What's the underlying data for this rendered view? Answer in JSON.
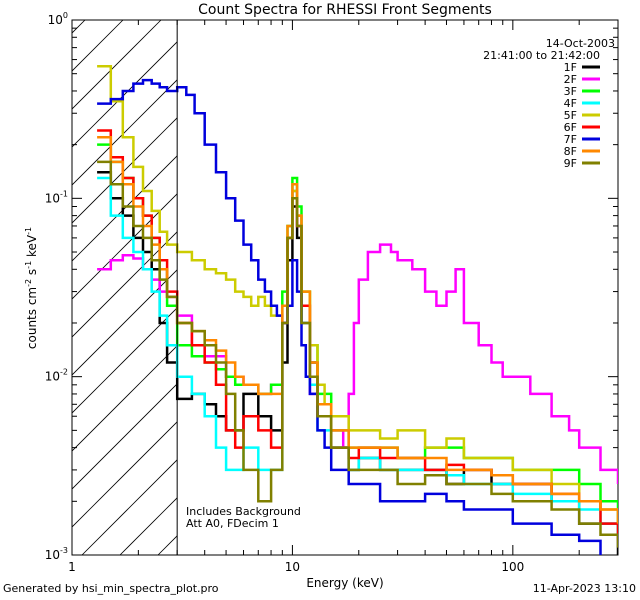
{
  "chart_data": {
    "type": "line",
    "title": "Count Spectra for RHESSI Front Segments",
    "xlabel": "Energy (keV)",
    "ylabel_main": "counts cm",
    "ylabel_exp1": "-2",
    "ylabel_mid": " s",
    "ylabel_exp2": "-1",
    "ylabel_end": " keV",
    "ylabel_exp3": "-1",
    "xscale": "log",
    "yscale": "log",
    "xlim": [
      1,
      300
    ],
    "ylim": [
      0.001,
      1
    ],
    "x_ticks": [
      {
        "value": 1,
        "label": "1"
      },
      {
        "value": 10,
        "label": "10"
      },
      {
        "value": 100,
        "label": "100"
      }
    ],
    "y_ticks": [
      {
        "value": 1,
        "base": "10",
        "exp": "0"
      },
      {
        "value": 0.1,
        "base": "10",
        "exp": "-1"
      },
      {
        "value": 0.01,
        "base": "10",
        "exp": "-2"
      },
      {
        "value": 0.001,
        "base": "10",
        "exp": "-3"
      }
    ],
    "date": "14-Oct-2003",
    "time_range": "21:41:00 to 21:42:00",
    "hatch_region_keV": [
      1,
      3
    ],
    "annotations": [
      "Includes Background",
      "Att A0, FDecim 1"
    ],
    "series": [
      {
        "name": "1F",
        "color": "#000000",
        "x": [
          1.3,
          1.5,
          1.7,
          1.9,
          2.1,
          2.3,
          2.5,
          2.7,
          3.0,
          3.5,
          4.0,
          4.5,
          5.0,
          5.5,
          6.0,
          7.0,
          8.0,
          9.0,
          9.5,
          10.0,
          10.5,
          11.0,
          12.0,
          13.0,
          15.0,
          18.0,
          20.0,
          25.0,
          30.0,
          40.0,
          50.0,
          60.0,
          80.0,
          100.0,
          150.0,
          200.0,
          250.0,
          300.0
        ],
        "y": [
          0.14,
          0.1,
          0.08,
          0.06,
          0.05,
          0.04,
          0.02,
          0.012,
          0.0075,
          0.008,
          0.007,
          0.006,
          0.005,
          0.005,
          0.008,
          0.006,
          0.005,
          0.012,
          0.045,
          0.09,
          0.06,
          0.02,
          0.012,
          0.006,
          0.004,
          0.003,
          0.0035,
          0.003,
          0.003,
          0.003,
          0.0025,
          0.003,
          0.0025,
          0.0025,
          0.002,
          0.0015,
          0.0015,
          0.001
        ]
      },
      {
        "name": "2F",
        "color": "#ff00ff",
        "x": [
          1.3,
          1.5,
          1.7,
          1.9,
          2.1,
          2.3,
          2.5,
          2.7,
          3.0,
          3.5,
          4.0,
          5.0,
          6.0,
          7.0,
          8.0,
          9.0,
          9.5,
          10.0,
          10.5,
          11.0,
          12.0,
          13.0,
          15.0,
          17.0,
          18.0,
          19.0,
          20.0,
          22.0,
          25.0,
          28.0,
          30.0,
          35.0,
          40.0,
          45.0,
          50.0,
          55.0,
          60.0,
          70.0,
          80.0,
          90.0,
          100.0,
          120.0,
          150.0,
          180.0,
          200.0,
          250.0,
          300.0
        ],
        "y": [
          0.04,
          0.045,
          0.048,
          0.046,
          0.04,
          0.035,
          0.03,
          0.028,
          0.022,
          0.015,
          0.013,
          0.01,
          0.009,
          0.008,
          0.009,
          0.02,
          0.06,
          0.11,
          0.07,
          0.02,
          0.008,
          0.006,
          0.005,
          0.004,
          0.008,
          0.02,
          0.035,
          0.05,
          0.055,
          0.05,
          0.045,
          0.04,
          0.03,
          0.025,
          0.03,
          0.04,
          0.02,
          0.015,
          0.012,
          0.01,
          0.01,
          0.008,
          0.006,
          0.005,
          0.004,
          0.003,
          0.0025
        ]
      },
      {
        "name": "3F",
        "color": "#00ff00",
        "x": [
          1.3,
          1.5,
          1.7,
          1.9,
          2.1,
          2.3,
          2.5,
          2.7,
          3.0,
          3.5,
          4.0,
          4.5,
          5.0,
          5.5,
          6.0,
          7.0,
          8.0,
          9.0,
          9.5,
          10.0,
          10.5,
          11.0,
          12.0,
          13.0,
          15.0,
          18.0,
          20.0,
          25.0,
          30.0,
          40.0,
          50.0,
          60.0,
          80.0,
          100.0,
          150.0,
          200.0,
          250.0,
          300.0
        ],
        "y": [
          0.2,
          0.16,
          0.13,
          0.1,
          0.08,
          0.06,
          0.04,
          0.025,
          0.015,
          0.013,
          0.012,
          0.011,
          0.01,
          0.009,
          0.009,
          0.008,
          0.009,
          0.03,
          0.07,
          0.13,
          0.09,
          0.03,
          0.015,
          0.008,
          0.005,
          0.004,
          0.004,
          0.004,
          0.0035,
          0.004,
          0.004,
          0.0035,
          0.0035,
          0.003,
          0.003,
          0.0025,
          0.002,
          0.0015
        ]
      },
      {
        "name": "4F",
        "color": "#00ffff",
        "x": [
          1.3,
          1.5,
          1.7,
          1.9,
          2.1,
          2.3,
          2.5,
          2.7,
          3.0,
          3.5,
          4.0,
          4.5,
          5.0,
          5.5,
          6.0,
          7.0,
          8.0,
          9.0,
          9.5,
          10.0,
          10.5,
          11.0,
          12.0,
          13.0,
          15.0,
          18.0,
          20.0,
          25.0,
          30.0,
          40.0,
          50.0,
          60.0,
          80.0,
          100.0,
          150.0,
          200.0,
          250.0,
          300.0
        ],
        "y": [
          0.13,
          0.08,
          0.06,
          0.05,
          0.04,
          0.03,
          0.022,
          0.015,
          0.01,
          0.008,
          0.006,
          0.004,
          0.003,
          0.003,
          0.004,
          0.003,
          0.003,
          0.02,
          0.06,
          0.12,
          0.08,
          0.02,
          0.009,
          0.005,
          0.004,
          0.003,
          0.0035,
          0.003,
          0.003,
          0.003,
          0.0028,
          0.0025,
          0.0025,
          0.0022,
          0.002,
          0.0018,
          0.0015,
          0.0012
        ]
      },
      {
        "name": "5F",
        "color": "#cccc00",
        "x": [
          1.3,
          1.5,
          1.7,
          1.9,
          2.1,
          2.3,
          2.5,
          2.7,
          3.0,
          3.5,
          4.0,
          4.5,
          5.0,
          5.5,
          6.0,
          6.5,
          7.0,
          7.5,
          8.0,
          9.0,
          9.5,
          10.0,
          10.5,
          11.0,
          12.0,
          13.0,
          14.0,
          15.0,
          18.0,
          20.0,
          25.0,
          30.0,
          40.0,
          50.0,
          60.0,
          80.0,
          100.0,
          150.0,
          200.0,
          250.0,
          300.0
        ],
        "y": [
          0.55,
          0.35,
          0.22,
          0.15,
          0.11,
          0.085,
          0.065,
          0.055,
          0.05,
          0.045,
          0.04,
          0.038,
          0.035,
          0.03,
          0.028,
          0.025,
          0.028,
          0.025,
          0.022,
          0.025,
          0.06,
          0.11,
          0.08,
          0.03,
          0.015,
          0.009,
          0.007,
          0.006,
          0.005,
          0.005,
          0.0045,
          0.005,
          0.004,
          0.0045,
          0.0035,
          0.0035,
          0.003,
          0.0025,
          0.002,
          0.0018,
          0.0015
        ]
      },
      {
        "name": "6F",
        "color": "#ff0000",
        "x": [
          1.3,
          1.5,
          1.7,
          1.9,
          2.1,
          2.3,
          2.5,
          2.7,
          3.0,
          3.5,
          4.0,
          4.5,
          5.0,
          5.5,
          6.0,
          7.0,
          8.0,
          9.0,
          9.5,
          10.0,
          10.5,
          11.0,
          12.0,
          13.0,
          15.0,
          18.0,
          20.0,
          25.0,
          30.0,
          40.0,
          50.0,
          60.0,
          80.0,
          100.0,
          150.0,
          200.0,
          250.0,
          300.0
        ],
        "y": [
          0.24,
          0.17,
          0.13,
          0.1,
          0.08,
          0.06,
          0.045,
          0.03,
          0.02,
          0.015,
          0.012,
          0.009,
          0.005,
          0.004,
          0.006,
          0.005,
          0.004,
          0.02,
          0.06,
          0.1,
          0.07,
          0.025,
          0.01,
          0.006,
          0.004,
          0.0035,
          0.004,
          0.0035,
          0.0035,
          0.003,
          0.0032,
          0.003,
          0.0028,
          0.0025,
          0.0022,
          0.002,
          0.0015,
          0.0012
        ]
      },
      {
        "name": "7F",
        "color": "#0000dd",
        "x": [
          1.3,
          1.5,
          1.7,
          1.9,
          2.1,
          2.3,
          2.5,
          2.7,
          3.0,
          3.3,
          3.6,
          4.0,
          4.5,
          5.0,
          5.5,
          6.0,
          6.5,
          7.0,
          7.5,
          8.0,
          8.5,
          9.0,
          9.5,
          10.0,
          10.5,
          11.0,
          11.5,
          12.0,
          13.0,
          14.0,
          15.0,
          18.0,
          20.0,
          25.0,
          30.0,
          40.0,
          50.0,
          60.0,
          80.0,
          100.0,
          150.0,
          200.0,
          250.0
        ],
        "y": [
          0.34,
          0.36,
          0.4,
          0.44,
          0.46,
          0.44,
          0.42,
          0.4,
          0.42,
          0.38,
          0.3,
          0.2,
          0.14,
          0.1,
          0.075,
          0.055,
          0.045,
          0.035,
          0.03,
          0.025,
          0.022,
          0.02,
          0.025,
          0.045,
          0.03,
          0.015,
          0.01,
          0.008,
          0.005,
          0.004,
          0.003,
          0.0025,
          0.0025,
          0.002,
          0.002,
          0.0022,
          0.002,
          0.0018,
          0.0018,
          0.0015,
          0.0013,
          0.0012,
          0.001
        ]
      },
      {
        "name": "8F",
        "color": "#ff8800",
        "x": [
          1.3,
          1.5,
          1.7,
          1.9,
          2.1,
          2.3,
          2.5,
          2.7,
          3.0,
          3.5,
          4.0,
          4.5,
          5.0,
          5.5,
          6.0,
          7.0,
          8.0,
          9.0,
          9.5,
          10.0,
          10.5,
          11.0,
          12.0,
          13.0,
          15.0,
          18.0,
          20.0,
          25.0,
          30.0,
          40.0,
          50.0,
          60.0,
          80.0,
          100.0,
          150.0,
          200.0,
          250.0,
          300.0
        ],
        "y": [
          0.22,
          0.16,
          0.12,
          0.09,
          0.07,
          0.055,
          0.04,
          0.028,
          0.02,
          0.018,
          0.016,
          0.014,
          0.012,
          0.01,
          0.009,
          0.008,
          0.008,
          0.025,
          0.07,
          0.12,
          0.08,
          0.03,
          0.012,
          0.007,
          0.005,
          0.004,
          0.004,
          0.004,
          0.0035,
          0.0035,
          0.003,
          0.003,
          0.0028,
          0.0025,
          0.0022,
          0.002,
          0.0018,
          0.0015
        ]
      },
      {
        "name": "9F",
        "color": "#808000",
        "x": [
          1.3,
          1.5,
          1.7,
          1.9,
          2.1,
          2.3,
          2.5,
          2.7,
          3.0,
          3.5,
          4.0,
          4.5,
          5.0,
          5.5,
          6.0,
          7.0,
          8.0,
          9.0,
          9.5,
          10.0,
          10.5,
          11.0,
          12.0,
          13.0,
          15.0,
          18.0,
          20.0,
          25.0,
          30.0,
          40.0,
          50.0,
          60.0,
          80.0,
          100.0,
          150.0,
          200.0,
          250.0,
          300.0
        ],
        "y": [
          0.16,
          0.12,
          0.09,
          0.07,
          0.06,
          0.045,
          0.035,
          0.028,
          0.02,
          0.018,
          0.015,
          0.012,
          0.008,
          0.005,
          0.003,
          0.002,
          0.003,
          0.02,
          0.06,
          0.1,
          0.07,
          0.02,
          0.01,
          0.006,
          0.004,
          0.003,
          0.003,
          0.003,
          0.0025,
          0.0028,
          0.0025,
          0.0025,
          0.0022,
          0.002,
          0.0018,
          0.0015,
          0.0013,
          0.0011
        ]
      }
    ]
  },
  "footer": {
    "generated_by": "Generated by hsi_min_spectra_plot.pro",
    "timestamp": "11-Apr-2023 13:10"
  }
}
